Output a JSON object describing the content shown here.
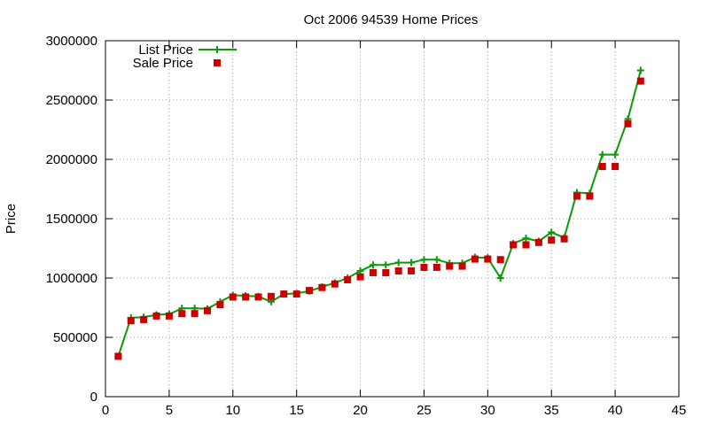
{
  "chart_data": {
    "type": "line",
    "title": "Oct 2006 94539 Home Prices",
    "xlabel": "",
    "ylabel": "Price",
    "xlim": [
      0,
      45
    ],
    "ylim": [
      0,
      3000000
    ],
    "xticks": [
      0,
      5,
      10,
      15,
      20,
      25,
      30,
      35,
      40,
      45
    ],
    "yticks": [
      0,
      500000,
      1000000,
      1500000,
      2000000,
      2500000,
      3000000
    ],
    "xtick_labels": [
      "0",
      "5",
      "10",
      "15",
      "20",
      "25",
      "30",
      "35",
      "40",
      "45"
    ],
    "ytick_labels": [
      "0",
      "500000",
      "1000000",
      "1500000",
      "2000000",
      "2500000",
      "3000000"
    ],
    "grid": true,
    "legend_position": "top-left",
    "series": [
      {
        "name": "List Price",
        "style": "line with plus markers",
        "color": "#0a9a0a",
        "x": [
          1,
          2,
          3,
          4,
          5,
          6,
          7,
          8,
          9,
          10,
          11,
          12,
          13,
          14,
          15,
          16,
          17,
          18,
          19,
          20,
          21,
          22,
          23,
          24,
          25,
          26,
          27,
          28,
          29,
          30,
          31,
          32,
          33,
          34,
          35,
          36,
          37,
          38,
          39,
          40,
          41,
          42
        ],
        "y": [
          340000,
          665000,
          670000,
          690000,
          695000,
          745000,
          745000,
          740000,
          800000,
          855000,
          850000,
          845000,
          800000,
          865000,
          870000,
          890000,
          925000,
          960000,
          1000000,
          1060000,
          1110000,
          1110000,
          1130000,
          1130000,
          1155000,
          1155000,
          1125000,
          1125000,
          1175000,
          1170000,
          1000000,
          1290000,
          1335000,
          1310000,
          1385000,
          1340000,
          1720000,
          1715000,
          2040000,
          2040000,
          2340000,
          2750000
        ]
      },
      {
        "name": "Sale Price",
        "style": "square markers",
        "color": "#cc0000",
        "x": [
          1,
          2,
          3,
          4,
          5,
          6,
          7,
          8,
          9,
          10,
          11,
          12,
          13,
          14,
          15,
          16,
          17,
          18,
          19,
          20,
          21,
          22,
          23,
          24,
          25,
          26,
          27,
          28,
          29,
          30,
          31,
          32,
          33,
          34,
          35,
          36,
          37,
          38,
          39,
          40,
          41,
          42
        ],
        "y": [
          340000,
          640000,
          650000,
          680000,
          680000,
          700000,
          700000,
          725000,
          775000,
          840000,
          840000,
          840000,
          845000,
          865000,
          865000,
          895000,
          920000,
          950000,
          985000,
          1010000,
          1045000,
          1045000,
          1060000,
          1060000,
          1090000,
          1090000,
          1100000,
          1100000,
          1160000,
          1160000,
          1155000,
          1280000,
          1280000,
          1300000,
          1320000,
          1330000,
          1690000,
          1690000,
          1940000,
          1940000,
          2300000,
          2660000
        ]
      }
    ]
  }
}
